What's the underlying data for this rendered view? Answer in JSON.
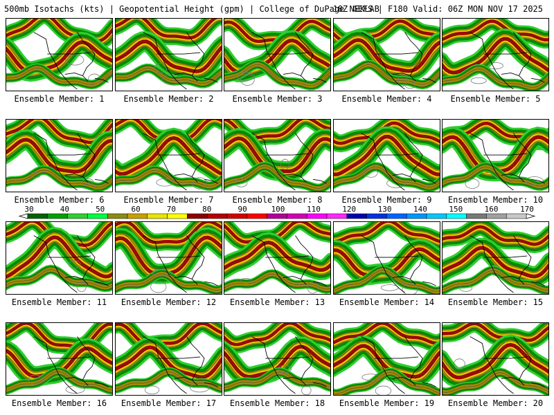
{
  "header": {
    "left": "500mb Isotachs (kts) | Geopotential Height (gpm) | College of DuPage NEXLAB",
    "right": "18Z GEFS | F180 Valid: 06Z MON NOV 17 2025"
  },
  "panels": [
    {
      "label": "Ensemble Member: 1"
    },
    {
      "label": "Ensemble Member: 2"
    },
    {
      "label": "Ensemble Member: 3"
    },
    {
      "label": "Ensemble Member: 4"
    },
    {
      "label": "Ensemble Member: 5"
    },
    {
      "label": "Ensemble Member: 6"
    },
    {
      "label": "Ensemble Member: 7"
    },
    {
      "label": "Ensemble Member: 8"
    },
    {
      "label": "Ensemble Member: 9"
    },
    {
      "label": "Ensemble Member: 10"
    },
    {
      "label": "Ensemble Member: 11"
    },
    {
      "label": "Ensemble Member: 12"
    },
    {
      "label": "Ensemble Member: 13"
    },
    {
      "label": "Ensemble Member: 14"
    },
    {
      "label": "Ensemble Member: 15"
    },
    {
      "label": "Ensemble Member: 16"
    },
    {
      "label": "Ensemble Member: 17"
    },
    {
      "label": "Ensemble Member: 18"
    },
    {
      "label": "Ensemble Member: 19"
    },
    {
      "label": "Ensemble Member: 20"
    }
  ],
  "colorbar": {
    "tick_labels": [
      "30",
      "40",
      "50",
      "60",
      "70",
      "80",
      "90",
      "100",
      "110",
      "120",
      "130",
      "140",
      "150",
      "160",
      "170"
    ],
    "colors": [
      "#006400",
      "#00a000",
      "#32cd32",
      "#00ff3c",
      "#8c8c14",
      "#c8a000",
      "#e6e600",
      "#ffff00",
      "#8b0000",
      "#b40000",
      "#d20000",
      "#ff0000",
      "#b40096",
      "#d200b4",
      "#ff00ff",
      "#ff28ff",
      "#0000b4",
      "#0032dc",
      "#0064ff",
      "#0096ff",
      "#00c8ff",
      "#00ffff",
      "#787878",
      "#a0a0a0",
      "#c8c8c8"
    ]
  },
  "map_colors": {
    "light_green": "#32cd32",
    "dark_green": "#008c00",
    "olive": "#a08c00",
    "yellow": "#e6d200",
    "maroon": "#a00000",
    "height_contour": "#444444",
    "border": "#000000"
  }
}
